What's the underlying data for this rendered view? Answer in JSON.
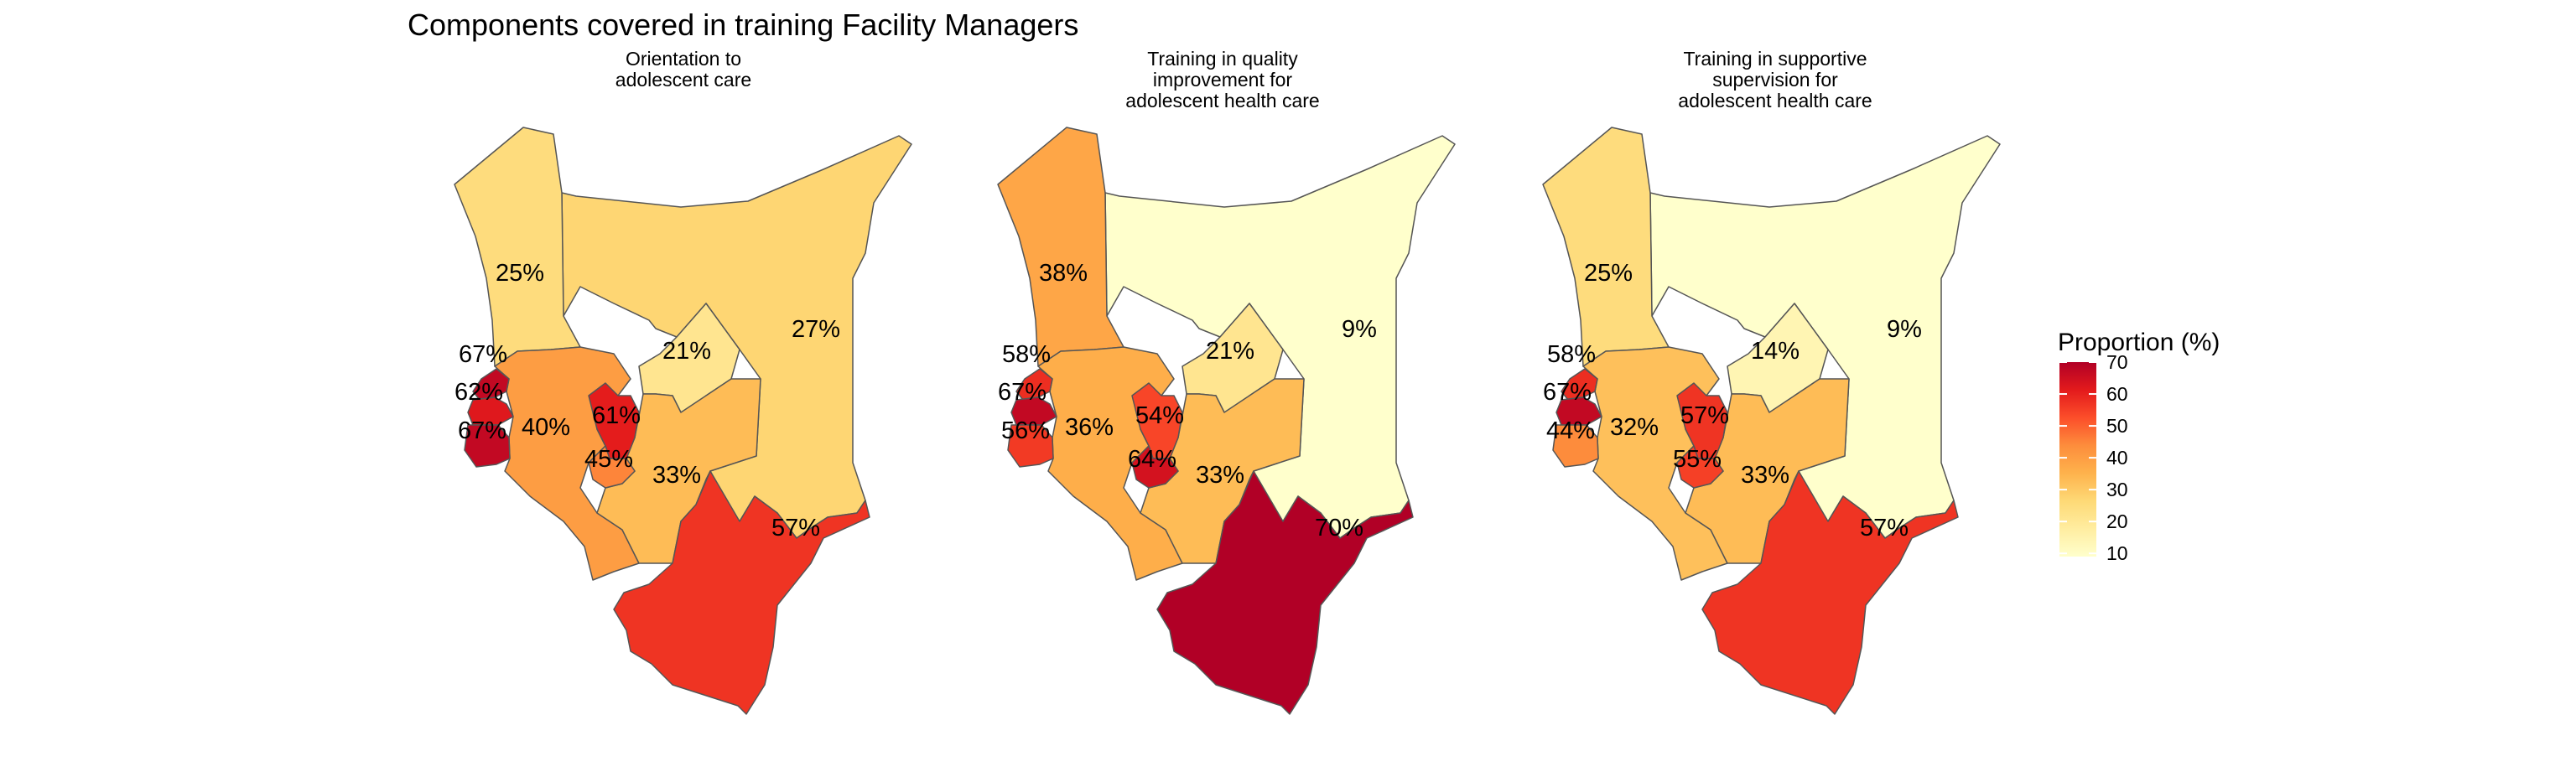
{
  "figure": {
    "title": "Components covered in training Facility Managers"
  },
  "panels": [
    {
      "title_lines": [
        "Orientation to",
        "adolescent care"
      ],
      "regions": [
        {
          "region": "northwest",
          "value": 25,
          "label": "25%"
        },
        {
          "region": "northeast",
          "value": 27,
          "label": "27%"
        },
        {
          "region": "centralnorth",
          "value": 21,
          "label": "21%"
        },
        {
          "region": "western_a",
          "value": 67,
          "label": "67%"
        },
        {
          "region": "western_b",
          "value": 62,
          "label": "62%"
        },
        {
          "region": "western_c",
          "value": 67,
          "label": "67%"
        },
        {
          "region": "riftsouth",
          "value": 40,
          "label": "40%"
        },
        {
          "region": "central",
          "value": 61,
          "label": "61%"
        },
        {
          "region": "nairobi",
          "value": 45,
          "label": "45%"
        },
        {
          "region": "eastern",
          "value": 33,
          "label": "33%"
        },
        {
          "region": "coast",
          "value": 57,
          "label": "57%"
        }
      ]
    },
    {
      "title_lines": [
        "Training in quality",
        "improvement for",
        "adolescent health care"
      ],
      "regions": [
        {
          "region": "northwest",
          "value": 38,
          "label": "38%"
        },
        {
          "region": "northeast",
          "value": 9,
          "label": "9%"
        },
        {
          "region": "centralnorth",
          "value": 21,
          "label": "21%"
        },
        {
          "region": "western_a",
          "value": 58,
          "label": "58%"
        },
        {
          "region": "western_b",
          "value": 67,
          "label": "67%"
        },
        {
          "region": "western_c",
          "value": 56,
          "label": "56%"
        },
        {
          "region": "riftsouth",
          "value": 36,
          "label": "36%"
        },
        {
          "region": "central",
          "value": 54,
          "label": "54%"
        },
        {
          "region": "nairobi",
          "value": 64,
          "label": "64%"
        },
        {
          "region": "eastern",
          "value": 33,
          "label": "33%"
        },
        {
          "region": "coast",
          "value": 70,
          "label": "70%"
        }
      ]
    },
    {
      "title_lines": [
        "Training in supportive",
        "supervision for",
        "adolescent health care"
      ],
      "regions": [
        {
          "region": "northwest",
          "value": 25,
          "label": "25%"
        },
        {
          "region": "northeast",
          "value": 9,
          "label": "9%"
        },
        {
          "region": "centralnorth",
          "value": 14,
          "label": "14%"
        },
        {
          "region": "western_a",
          "value": 58,
          "label": "58%"
        },
        {
          "region": "western_b",
          "value": 67,
          "label": "67%"
        },
        {
          "region": "western_c",
          "value": 44,
          "label": "44%"
        },
        {
          "region": "riftsouth",
          "value": 32,
          "label": "32%"
        },
        {
          "region": "central",
          "value": 57,
          "label": "57%"
        },
        {
          "region": "nairobi",
          "value": 55,
          "label": "55%"
        },
        {
          "region": "eastern",
          "value": 33,
          "label": "33%"
        },
        {
          "region": "coast",
          "value": 57,
          "label": "57%"
        }
      ]
    }
  ],
  "legend": {
    "title": "Proportion (%)",
    "min": 9,
    "max": 70,
    "ticks": [
      10,
      20,
      30,
      40,
      50,
      60,
      70
    ],
    "tick_labels": [
      "10",
      "20",
      "30",
      "40",
      "50",
      "60",
      "70"
    ],
    "palette": [
      "#ffffcc",
      "#ffeda0",
      "#fed976",
      "#feb24c",
      "#fd8d3c",
      "#fc4e2a",
      "#e31a1c",
      "#b10026"
    ]
  }
}
